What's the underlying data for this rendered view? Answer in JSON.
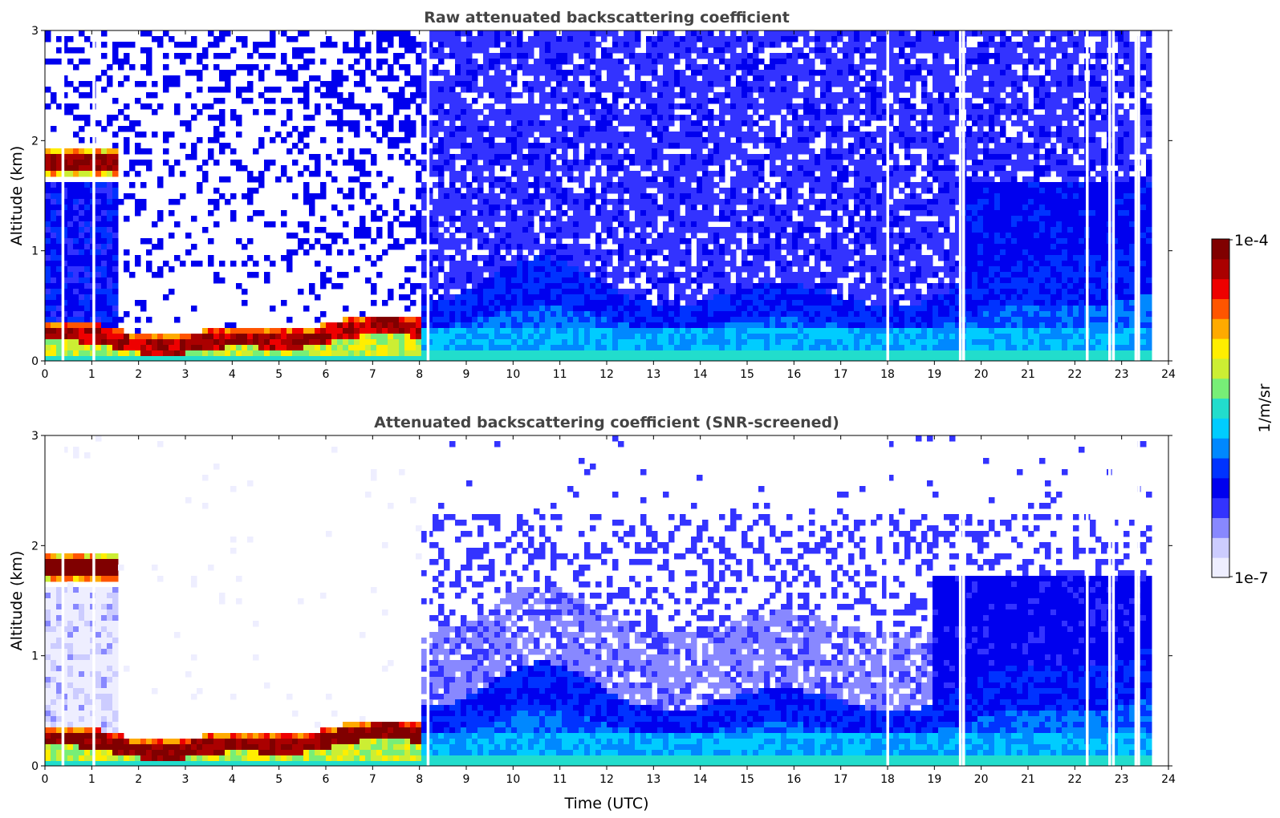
{
  "chart_data": [
    {
      "type": "heatmap",
      "title": "Raw attenuated backscattering coefficient",
      "xlabel": "",
      "ylabel": "Altitude (km)",
      "xlim": [
        0,
        24
      ],
      "ylim": [
        0,
        3
      ],
      "xticks": [
        "0",
        "1",
        "2",
        "3",
        "4",
        "5",
        "6",
        "7",
        "8",
        "9",
        "10",
        "11",
        "12",
        "13",
        "14",
        "15",
        "16",
        "17",
        "18",
        "19",
        "20",
        "21",
        "22",
        "23",
        "24"
      ],
      "yticks": [
        "0",
        "1",
        "2",
        "3"
      ],
      "screened": false,
      "regimes": [
        {
          "t0": 0,
          "t1": 1.6,
          "cloud_alt": 1.78
        },
        {
          "t0": 0,
          "t1": 8.0,
          "surface_layer_top": 0.3
        }
      ],
      "data_gaps_utc": [
        0.38,
        1.04,
        8.18,
        18.0,
        19.55,
        19.62,
        22.26,
        22.74,
        22.82,
        23.3,
        23.36
      ]
    },
    {
      "type": "heatmap",
      "title": "Attenuated backscattering coefficient (SNR-screened)",
      "xlabel": "Time (UTC)",
      "ylabel": "Altitude (km)",
      "xlim": [
        0,
        24
      ],
      "ylim": [
        0,
        3
      ],
      "xticks": [
        "0",
        "1",
        "2",
        "3",
        "4",
        "5",
        "6",
        "7",
        "8",
        "9",
        "10",
        "11",
        "12",
        "13",
        "14",
        "15",
        "16",
        "17",
        "18",
        "19",
        "20",
        "21",
        "22",
        "23",
        "24"
      ],
      "yticks": [
        "0",
        "1",
        "2",
        "3"
      ],
      "screened": true,
      "regimes": [
        {
          "t0": 0,
          "t1": 1.6,
          "cloud_alt": 1.78
        },
        {
          "t0": 0,
          "t1": 8.0,
          "surface_layer_top": 0.3
        }
      ],
      "data_gaps_utc": [
        0.38,
        1.04,
        8.18,
        18.0,
        19.55,
        19.62,
        22.26,
        22.74,
        22.82,
        23.3,
        23.36
      ]
    }
  ],
  "colorbar": {
    "label": "1/m/sr",
    "max_label": "1e-4",
    "min_label": "1e-7",
    "scale": "log",
    "colors": [
      "#eeeeff",
      "#ccccff",
      "#8888ff",
      "#3333ff",
      "#0000ee",
      "#0033ff",
      "#0088ff",
      "#00ccff",
      "#22ddcc",
      "#77ee77",
      "#ccee33",
      "#ffee00",
      "#ffaa00",
      "#ff5500",
      "#ee0000",
      "#aa0000",
      "#800000"
    ]
  }
}
